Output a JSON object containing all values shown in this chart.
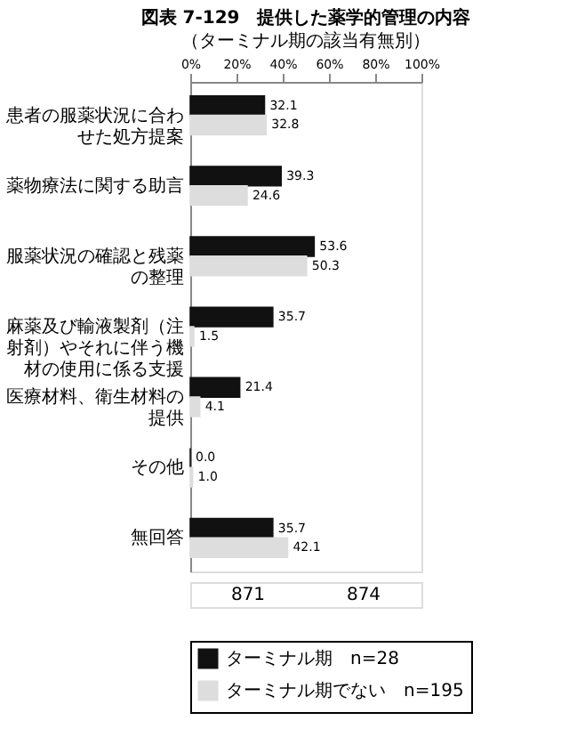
{
  "chart_data": {
    "type": "bar",
    "orientation": "horizontal",
    "title": "図表 7-129　提供した薬学的管理の内容",
    "subtitle": "（ターミナル期の該当有無別）",
    "categories": [
      "患者の服薬状況に合わせた処方提案",
      "薬物療法に関する助言",
      "服薬状況の確認と残薬の整理",
      "麻薬及び輸液製剤（注射剤）やそれに伴う機材の使用に係る支援",
      "医療材料、衛生材料の提供",
      "その他",
      "無回答"
    ],
    "series": [
      {
        "name": "ターミナル期　n=28",
        "color": "#111111",
        "values": [
          32.1,
          39.3,
          53.6,
          35.7,
          21.4,
          0.0,
          35.7
        ],
        "value_labels": [
          "32.1",
          "39.3",
          "53.6",
          "35.7",
          "21.4",
          "0.0",
          "35.7"
        ]
      },
      {
        "name": "ターミナル期でない　n=195",
        "color": "#dddddd",
        "values": [
          32.8,
          24.6,
          50.3,
          1.5,
          4.1,
          1.0,
          42.1
        ],
        "value_labels": [
          "32.8",
          "24.6",
          "50.3",
          "1.5",
          "4.1",
          "1.0",
          "42.1"
        ]
      }
    ],
    "xlim": [
      0,
      100
    ],
    "xticks": [
      {
        "value": 0,
        "label": "0%"
      },
      {
        "value": 20,
        "label": "20%"
      },
      {
        "value": 40,
        "label": "40%"
      },
      {
        "value": 60,
        "label": "60%"
      },
      {
        "value": 80,
        "label": "80%"
      },
      {
        "value": 100,
        "label": "100%"
      }
    ],
    "legend": "bottom",
    "grid": false,
    "annotations": [
      "871",
      "874"
    ]
  }
}
